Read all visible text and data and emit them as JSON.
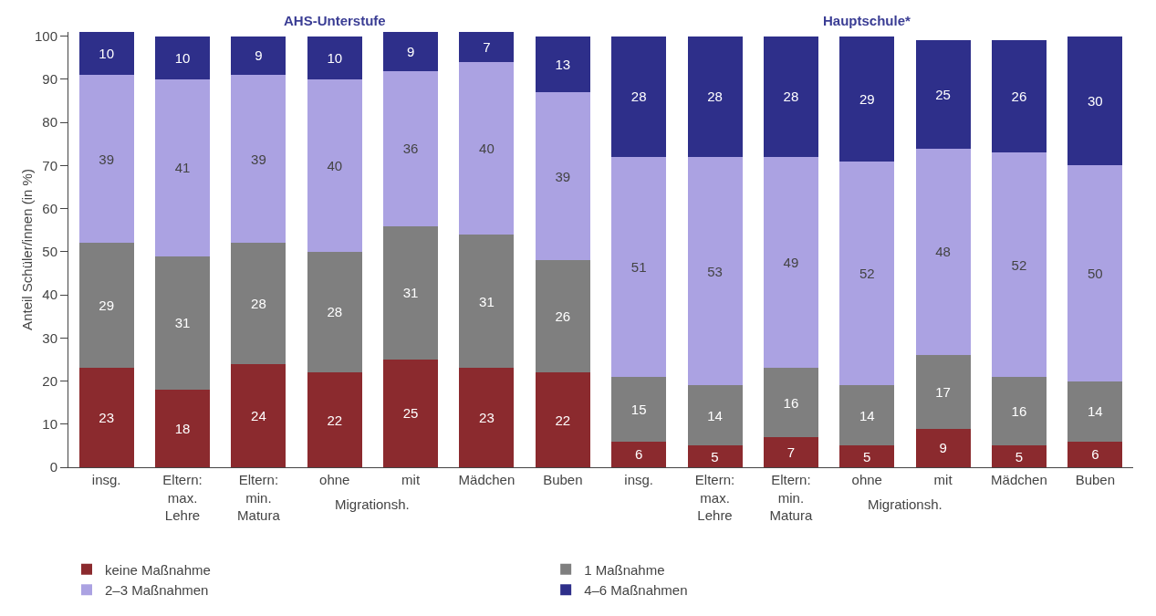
{
  "chart_data": {
    "type": "bar",
    "stacked": true,
    "ylabel": "Anteil Schüler/innen (in %)",
    "categories": [
      "insg.",
      "Eltern:\nmax.\nLehre",
      "Eltern:\nmin.\nMatura",
      "ohne",
      "mit",
      "Mädchen",
      "Buben",
      "insg.",
      "Eltern:\nmax.\nLehre",
      "Eltern:\nmin.\nMatura",
      "ohne",
      "mit",
      "Mädchen",
      "Buben"
    ],
    "series": [
      {
        "name": "keine Maßnahme",
        "color": "#8b2a2e",
        "values": [
          23,
          18,
          24,
          22,
          25,
          23,
          22,
          6,
          5,
          7,
          5,
          9,
          5,
          6
        ]
      },
      {
        "name": "1 Maßnahme",
        "color": "#7f7f7f",
        "values": [
          29,
          31,
          28,
          28,
          31,
          31,
          26,
          15,
          14,
          16,
          14,
          17,
          16,
          14
        ]
      },
      {
        "name": "2–3 Maßnahmen",
        "color": "#aba2e2",
        "values": [
          39,
          41,
          39,
          40,
          36,
          40,
          39,
          51,
          53,
          49,
          52,
          48,
          52,
          50
        ]
      },
      {
        "name": "4–6 Maßnahmen",
        "color": "#2e2f8a",
        "values": [
          10,
          10,
          9,
          10,
          9,
          7,
          13,
          28,
          28,
          28,
          29,
          25,
          26,
          30
        ]
      }
    ],
    "data_labels": true,
    "annotations": [
      "AHS-Unterstufe",
      "Hauptschule*",
      "Migrationsh.",
      "Migrationsh."
    ],
    "ylim": [
      0,
      101
    ],
    "yticks": [
      0,
      10,
      20,
      30,
      40,
      50,
      60,
      70,
      80,
      90,
      100
    ],
    "grid": false,
    "legend": "bottom"
  }
}
